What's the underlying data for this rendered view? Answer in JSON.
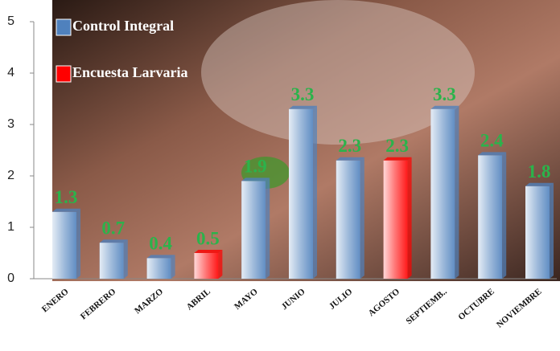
{
  "chart_data": {
    "type": "bar",
    "categories": [
      "ENERO",
      "FEBRERO",
      "MARZO",
      "ABRIL",
      "MAYO",
      "JUNIO",
      "JULIO",
      "AGOSTO",
      "SEPTIEMB..",
      "OCTUBRE",
      "NOVIEMBRE"
    ],
    "series": [
      {
        "name": "Control Integral",
        "color": "#4f81bd",
        "values": [
          1.3,
          0.7,
          0.4,
          null,
          1.9,
          3.3,
          2.3,
          null,
          3.3,
          2.4,
          1.8
        ]
      },
      {
        "name": "Encuesta Larvaria",
        "color": "#ff0000",
        "values": [
          null,
          null,
          null,
          0.5,
          null,
          null,
          null,
          2.3,
          null,
          null,
          null
        ]
      }
    ],
    "ylim": [
      0,
      5
    ],
    "yticks": [
      0,
      1,
      2,
      3,
      4,
      5
    ],
    "legend": "top-left"
  }
}
